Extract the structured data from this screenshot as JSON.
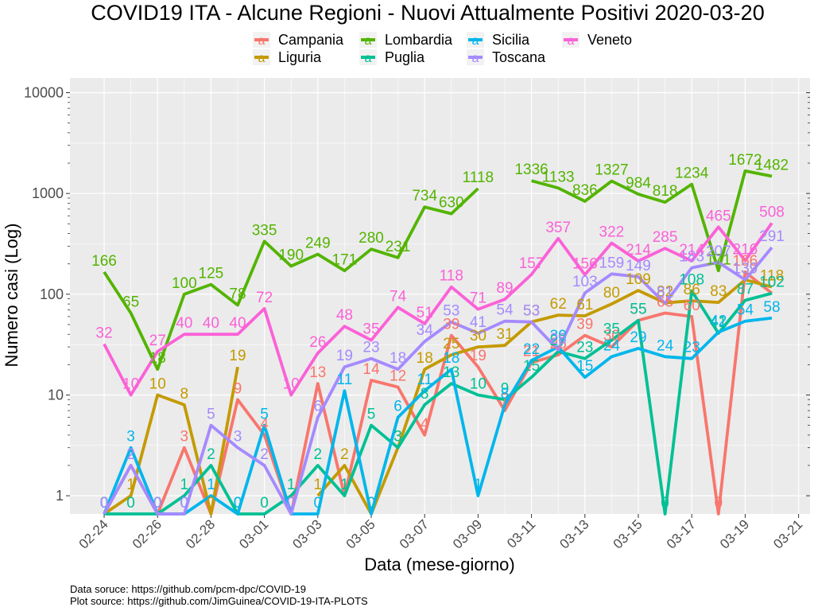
{
  "chart_data": {
    "type": "line",
    "title": "COVID19 ITA - Alcune Regioni - Nuovi Attualmente Positivi 2020-03-20",
    "xlabel": "Data (mese-giorno)",
    "ylabel": "Numero casi (Log)",
    "y_scale": "log",
    "ylim": [
      0.66,
      14000
    ],
    "yticks": [
      1,
      10,
      100,
      1000,
      10000
    ],
    "ytick_labels": [
      "1",
      "10",
      "100",
      "1000",
      "10000"
    ],
    "xticks": [
      "02-24",
      "02-26",
      "02-28",
      "03-01",
      "03-03",
      "03-05",
      "03-07",
      "03-09",
      "03-11",
      "03-13",
      "03-15",
      "03-17",
      "03-19",
      "03-21"
    ],
    "categories": [
      "02-24",
      "02-25",
      "02-26",
      "02-27",
      "02-28",
      "02-29",
      "03-01",
      "03-02",
      "03-03",
      "03-04",
      "03-05",
      "03-06",
      "03-07",
      "03-08",
      "03-09",
      "03-10",
      "03-11",
      "03-12",
      "03-13",
      "03-14",
      "03-15",
      "03-16",
      "03-17",
      "03-18",
      "03-19",
      "03-20"
    ],
    "grid": true,
    "legend_position": "top",
    "series": [
      {
        "name": "Campania",
        "color": "#F8766D",
        "values": [
          0,
          2,
          0,
          3,
          0,
          9,
          4,
          0,
          13,
          1,
          14,
          12,
          4,
          39,
          19,
          7,
          21,
          25,
          39,
          30,
          55,
          65,
          60,
          0,
          166,
          102
        ]
      },
      {
        "name": "Liguria",
        "color": "#C49A00",
        "values": [
          0,
          1,
          10,
          8,
          0,
          19,
          null,
          null,
          1,
          2,
          0,
          3,
          18,
          25,
          30,
          31,
          53,
          62,
          61,
          80,
          109,
          82,
          86,
          83,
          139,
          118
        ]
      },
      {
        "name": "Lombardia",
        "color": "#53B400",
        "values": [
          166,
          65,
          18,
          100,
          125,
          78,
          335,
          190,
          249,
          171,
          280,
          231,
          734,
          630,
          1118,
          null,
          1336,
          1133,
          836,
          1327,
          984,
          818,
          1234,
          171,
          1672,
          1482
        ]
      },
      {
        "name": "Puglia",
        "color": "#00C094",
        "values": [
          0,
          0,
          0,
          1,
          2,
          0,
          0,
          1,
          2,
          1,
          5,
          3,
          8,
          13,
          10,
          9,
          15,
          27,
          23,
          35,
          55,
          0,
          108,
          41,
          87,
          102
        ]
      },
      {
        "name": "Sicilia",
        "color": "#00B6EB",
        "values": [
          0,
          3,
          0,
          0,
          1,
          0,
          5,
          0,
          0,
          11,
          0,
          6,
          11,
          18,
          1,
          8,
          22,
          30,
          15,
          24,
          29,
          24,
          23,
          42,
          54,
          58
        ]
      },
      {
        "name": "Toscana",
        "color": "#A58AFF",
        "values": [
          0,
          2,
          0,
          0,
          5,
          3,
          2,
          0,
          6,
          19,
          23,
          18,
          34,
          53,
          41,
          54,
          53,
          28,
          103,
          159,
          149,
          81,
          183,
          207,
          139,
          291
        ]
      },
      {
        "name": "Veneto",
        "color": "#FB61D7",
        "values": [
          32,
          10,
          27,
          40,
          40,
          40,
          72,
          10,
          26,
          48,
          35,
          74,
          51,
          118,
          71,
          89,
          157,
          357,
          156,
          322,
          214,
          285,
          214,
          465,
          216,
          508
        ]
      }
    ]
  }
}
